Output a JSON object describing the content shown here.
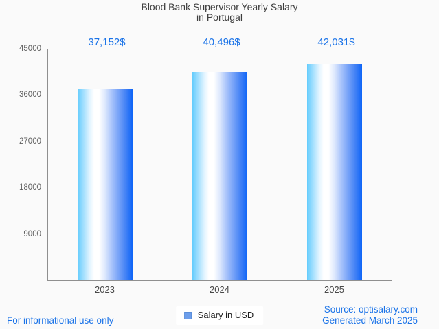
{
  "title": {
    "line1": "Blood Bank Supervisor Yearly Salary",
    "line2": "in Portugal"
  },
  "chart_data": {
    "type": "bar",
    "title": "Blood Bank Supervisor Yearly Salary in Portugal",
    "categories": [
      "2023",
      "2024",
      "2025"
    ],
    "values": [
      37152,
      40496,
      42031
    ],
    "value_labels": [
      "37,152$",
      "40,496$",
      "42,031$"
    ],
    "series_name": "Salary in USD",
    "xlabel": "",
    "ylabel": "",
    "ylim": [
      0,
      45000
    ],
    "y_ticks": [
      45000,
      36000,
      27000,
      18000,
      9000
    ],
    "grid": true,
    "legend_position": "bottom-center",
    "bar_gradient_stops": [
      [
        0,
        "#63ccfd"
      ],
      [
        10,
        "#9edefe"
      ],
      [
        22,
        "#e2f4ff"
      ],
      [
        30,
        "#ffffff"
      ],
      [
        39,
        "#ffffff"
      ],
      [
        50,
        "#dde8fd"
      ],
      [
        62,
        "#a9c4fb"
      ],
      [
        74,
        "#79a4f8"
      ],
      [
        87,
        "#4583f5"
      ],
      [
        100,
        "#0d64f7"
      ]
    ]
  },
  "legend": {
    "label": "Salary in USD",
    "swatch_color": "#6d9eeb"
  },
  "footer": {
    "left": "For informational use only",
    "source": "Source: optisalary.com",
    "generated": "Generated March 2025"
  },
  "colors": {
    "accent_blue": "#1a73e8",
    "background": "#fafafa",
    "axis": "#8f8f8f",
    "gridline": "#e4e4e4",
    "title_text": "#3d3d3d"
  }
}
